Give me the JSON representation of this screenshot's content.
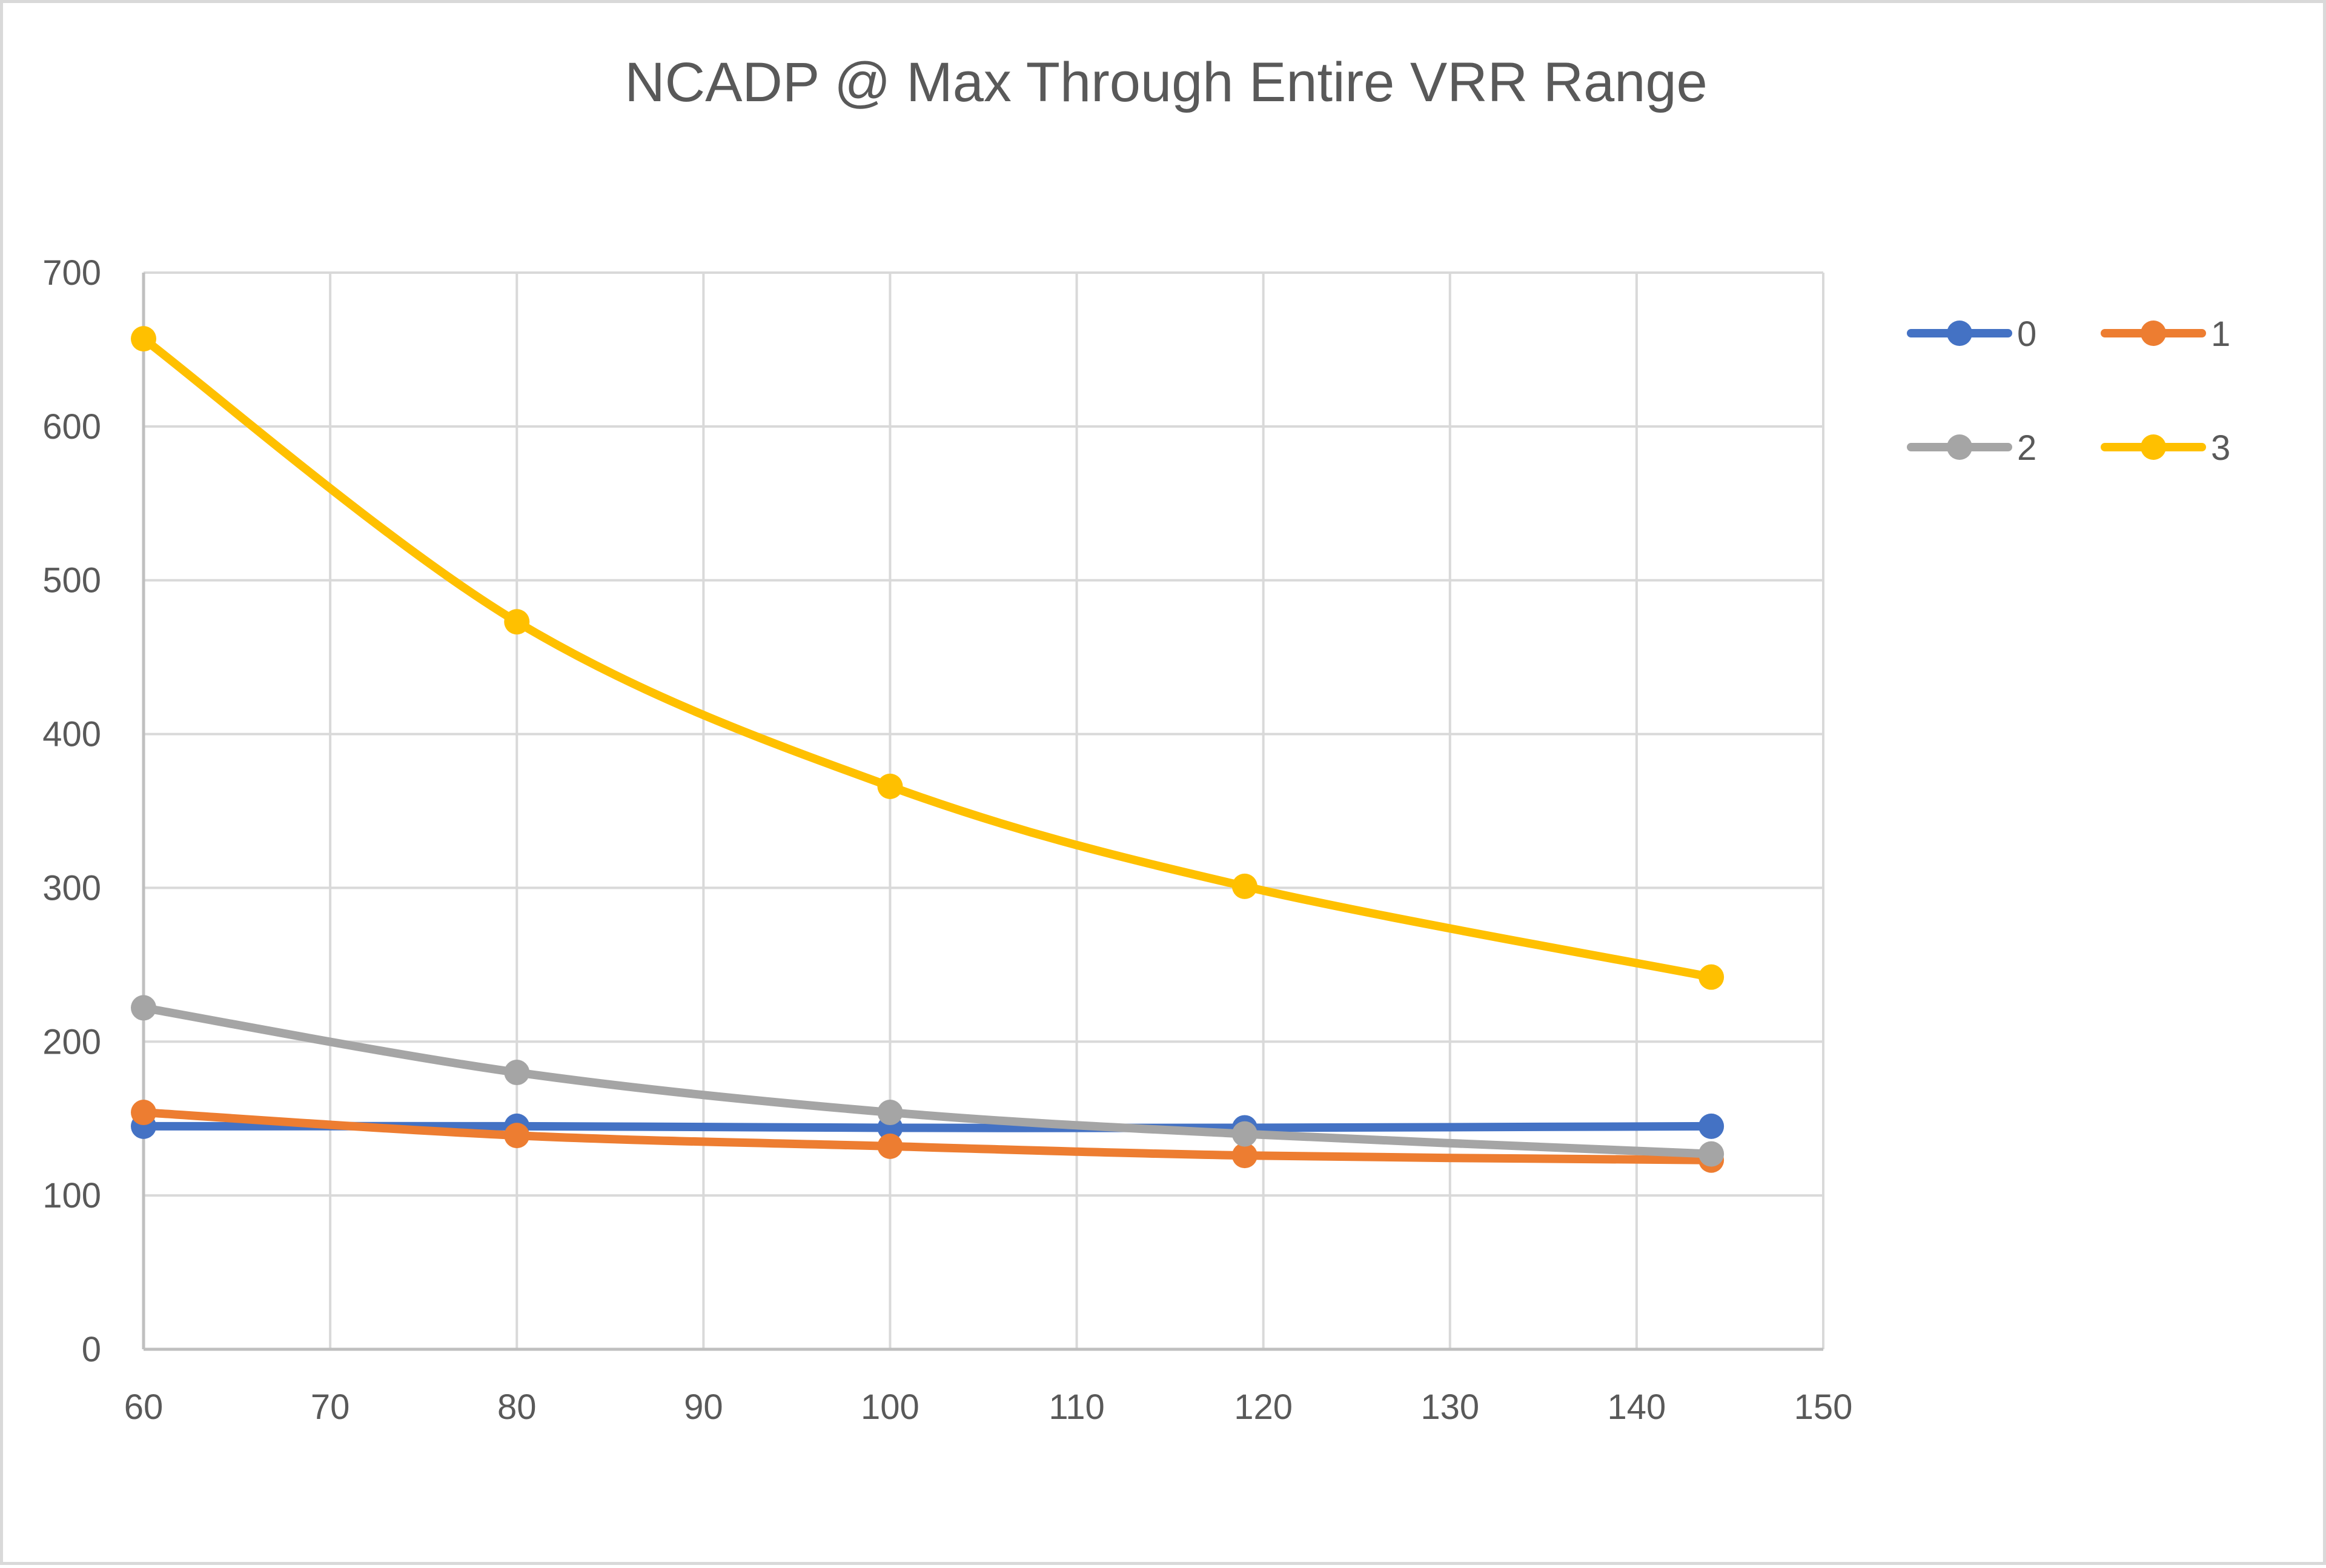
{
  "chart_data": {
    "type": "line",
    "title": "NCADP @ Max Through Entire VRR Range",
    "xlabel": "",
    "ylabel": "",
    "xlim": [
      60,
      150
    ],
    "ylim": [
      0,
      700
    ],
    "x_ticks": [
      60,
      70,
      80,
      90,
      100,
      110,
      120,
      130,
      140,
      150
    ],
    "y_ticks": [
      0,
      100,
      200,
      300,
      400,
      500,
      600,
      700
    ],
    "grid": true,
    "smooth": true,
    "legend_position": "top-right",
    "x": [
      60,
      80,
      100,
      119,
      144
    ],
    "series": [
      {
        "name": "0",
        "color": "#4472C4",
        "values": [
          145,
          145,
          144,
          144,
          145
        ]
      },
      {
        "name": "1",
        "color": "#ED7D31",
        "values": [
          154,
          139,
          132,
          126,
          123
        ]
      },
      {
        "name": "2",
        "color": "#A5A5A5",
        "values": [
          222,
          180,
          154,
          140,
          127
        ]
      },
      {
        "name": "3",
        "color": "#FFC000",
        "values": [
          657,
          473,
          366,
          301,
          242
        ]
      }
    ]
  }
}
